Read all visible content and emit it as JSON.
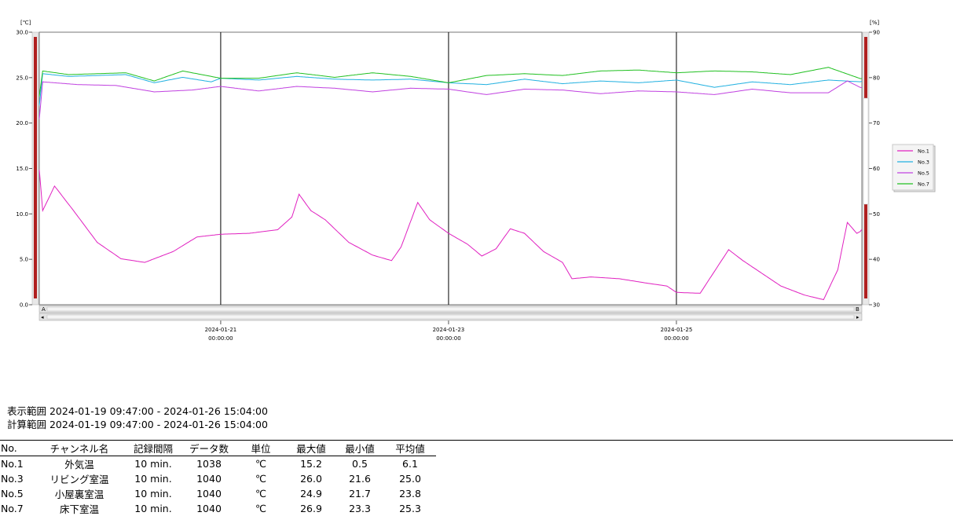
{
  "chart_data": {
    "type": "line",
    "y_left_unit": "[℃]",
    "y_right_unit": "[%]",
    "y_left_ticks": [
      "30.0",
      "25.0",
      "20.0",
      "15.0",
      "10.0",
      "5.0",
      "0.0"
    ],
    "y_right_ticks": [
      "90",
      "80",
      "70",
      "60",
      "50",
      "40",
      "30"
    ],
    "ylim_left": [
      0,
      30
    ],
    "ylim_right": [
      30,
      90
    ],
    "x_ticks": [
      {
        "date": "2024-01-21",
        "time": "00:00:00"
      },
      {
        "date": "2024-01-23",
        "time": "00:00:00"
      },
      {
        "date": "2024-01-25",
        "time": "00:00:00"
      }
    ],
    "x_range": [
      "2024-01-19 09:47:00",
      "2024-01-26 15:04:00"
    ],
    "scroll_left_label": "A",
    "scroll_right_label": "B",
    "legend": "right",
    "series": [
      {
        "name": "No.1",
        "color": "#e020c0",
        "points": [
          [
            "2024-01-19 09:47",
            15.0
          ],
          [
            "2024-01-19 10:30",
            10.5
          ],
          [
            "2024-01-19 13:00",
            13.2
          ],
          [
            "2024-01-19 17:00",
            10.5
          ],
          [
            "2024-01-19 22:00",
            7.0
          ],
          [
            "2024-01-20 03:00",
            5.2
          ],
          [
            "2024-01-20 08:00",
            4.8
          ],
          [
            "2024-01-20 14:00",
            6.0
          ],
          [
            "2024-01-20 19:00",
            7.6
          ],
          [
            "2024-01-21 00:00",
            7.9
          ],
          [
            "2024-01-21 06:00",
            8.0
          ],
          [
            "2024-01-21 12:00",
            8.4
          ],
          [
            "2024-01-21 15:00",
            9.8
          ],
          [
            "2024-01-21 16:30",
            12.3
          ],
          [
            "2024-01-21 19:00",
            10.5
          ],
          [
            "2024-01-21 22:00",
            9.5
          ],
          [
            "2024-01-22 03:00",
            7.0
          ],
          [
            "2024-01-22 08:00",
            5.6
          ],
          [
            "2024-01-22 12:00",
            5.0
          ],
          [
            "2024-01-22 14:00",
            6.5
          ],
          [
            "2024-01-22 17:30",
            11.4
          ],
          [
            "2024-01-22 20:00",
            9.5
          ],
          [
            "2024-01-23 00:00",
            8.0
          ],
          [
            "2024-01-23 04:00",
            6.8
          ],
          [
            "2024-01-23 07:00",
            5.5
          ],
          [
            "2024-01-23 10:00",
            6.3
          ],
          [
            "2024-01-23 13:00",
            8.5
          ],
          [
            "2024-01-23 16:00",
            8.0
          ],
          [
            "2024-01-23 20:00",
            6.0
          ],
          [
            "2024-01-24 00:00",
            4.8
          ],
          [
            "2024-01-24 02:00",
            3.0
          ],
          [
            "2024-01-24 06:00",
            3.2
          ],
          [
            "2024-01-24 12:00",
            3.0
          ],
          [
            "2024-01-24 18:00",
            2.5
          ],
          [
            "2024-01-24 22:00",
            2.2
          ],
          [
            "2024-01-25 00:00",
            1.5
          ],
          [
            "2024-01-25 05:00",
            1.4
          ],
          [
            "2024-01-25 08:00",
            3.8
          ],
          [
            "2024-01-25 11:00",
            6.2
          ],
          [
            "2024-01-25 14:00",
            5.0
          ],
          [
            "2024-01-25 18:00",
            3.6
          ],
          [
            "2024-01-25 22:00",
            2.2
          ],
          [
            "2024-01-26 03:00",
            1.2
          ],
          [
            "2024-01-26 07:00",
            0.7
          ],
          [
            "2024-01-26 10:00",
            4.0
          ],
          [
            "2024-01-26 12:00",
            9.2
          ],
          [
            "2024-01-26 14:00",
            8.0
          ],
          [
            "2024-01-26 15:04",
            8.3
          ]
        ]
      },
      {
        "name": "No.3",
        "color": "#20b0e0",
        "points": [
          [
            "2024-01-19 09:47",
            22.0
          ],
          [
            "2024-01-19 10:30",
            25.5
          ],
          [
            "2024-01-19 16:00",
            25.2
          ],
          [
            "2024-01-19 22:00",
            25.3
          ],
          [
            "2024-01-20 04:00",
            25.4
          ],
          [
            "2024-01-20 10:00",
            24.5
          ],
          [
            "2024-01-20 16:00",
            25.1
          ],
          [
            "2024-01-20 22:00",
            24.6
          ],
          [
            "2024-01-21 00:00",
            25.0
          ],
          [
            "2024-01-21 08:00",
            24.8
          ],
          [
            "2024-01-21 16:00",
            25.2
          ],
          [
            "2024-01-22 00:00",
            24.9
          ],
          [
            "2024-01-22 08:00",
            24.8
          ],
          [
            "2024-01-22 16:00",
            24.9
          ],
          [
            "2024-01-23 00:00",
            24.5
          ],
          [
            "2024-01-23 08:00",
            24.3
          ],
          [
            "2024-01-23 16:00",
            24.9
          ],
          [
            "2024-01-24 00:00",
            24.4
          ],
          [
            "2024-01-24 08:00",
            24.7
          ],
          [
            "2024-01-24 16:00",
            24.5
          ],
          [
            "2024-01-25 00:00",
            24.8
          ],
          [
            "2024-01-25 08:00",
            24.0
          ],
          [
            "2024-01-25 16:00",
            24.6
          ],
          [
            "2024-01-26 00:00",
            24.3
          ],
          [
            "2024-01-26 08:00",
            24.8
          ],
          [
            "2024-01-26 15:04",
            24.6
          ]
        ]
      },
      {
        "name": "No.5",
        "color": "#c040e0",
        "points": [
          [
            "2024-01-19 09:47",
            20.5
          ],
          [
            "2024-01-19 10:30",
            24.6
          ],
          [
            "2024-01-19 18:00",
            24.3
          ],
          [
            "2024-01-20 02:00",
            24.2
          ],
          [
            "2024-01-20 10:00",
            23.5
          ],
          [
            "2024-01-20 18:00",
            23.7
          ],
          [
            "2024-01-21 00:00",
            24.1
          ],
          [
            "2024-01-21 08:00",
            23.6
          ],
          [
            "2024-01-21 16:00",
            24.1
          ],
          [
            "2024-01-22 00:00",
            23.9
          ],
          [
            "2024-01-22 08:00",
            23.5
          ],
          [
            "2024-01-22 16:00",
            23.9
          ],
          [
            "2024-01-23 00:00",
            23.8
          ],
          [
            "2024-01-23 08:00",
            23.2
          ],
          [
            "2024-01-23 16:00",
            23.8
          ],
          [
            "2024-01-24 00:00",
            23.7
          ],
          [
            "2024-01-24 08:00",
            23.3
          ],
          [
            "2024-01-24 16:00",
            23.6
          ],
          [
            "2024-01-25 00:00",
            23.5
          ],
          [
            "2024-01-25 08:00",
            23.2
          ],
          [
            "2024-01-25 16:00",
            23.8
          ],
          [
            "2024-01-26 00:00",
            23.4
          ],
          [
            "2024-01-26 08:00",
            23.4
          ],
          [
            "2024-01-26 12:00",
            24.7
          ],
          [
            "2024-01-26 15:04",
            23.9
          ]
        ]
      },
      {
        "name": "No.7",
        "color": "#20c020",
        "points": [
          [
            "2024-01-19 09:47",
            23.0
          ],
          [
            "2024-01-19 10:30",
            25.8
          ],
          [
            "2024-01-19 16:00",
            25.4
          ],
          [
            "2024-01-19 22:00",
            25.5
          ],
          [
            "2024-01-20 04:00",
            25.6
          ],
          [
            "2024-01-20 10:00",
            24.7
          ],
          [
            "2024-01-20 16:00",
            25.8
          ],
          [
            "2024-01-20 22:00",
            25.2
          ],
          [
            "2024-01-21 00:00",
            25.0
          ],
          [
            "2024-01-21 08:00",
            25.0
          ],
          [
            "2024-01-21 16:00",
            25.6
          ],
          [
            "2024-01-22 00:00",
            25.1
          ],
          [
            "2024-01-22 08:00",
            25.6
          ],
          [
            "2024-01-22 16:00",
            25.2
          ],
          [
            "2024-01-23 00:00",
            24.5
          ],
          [
            "2024-01-23 08:00",
            25.3
          ],
          [
            "2024-01-23 16:00",
            25.5
          ],
          [
            "2024-01-24 00:00",
            25.3
          ],
          [
            "2024-01-24 08:00",
            25.8
          ],
          [
            "2024-01-24 16:00",
            25.9
          ],
          [
            "2024-01-25 00:00",
            25.6
          ],
          [
            "2024-01-25 08:00",
            25.8
          ],
          [
            "2024-01-25 16:00",
            25.7
          ],
          [
            "2024-01-26 00:00",
            25.4
          ],
          [
            "2024-01-26 08:00",
            26.2
          ],
          [
            "2024-01-26 15:04",
            24.9
          ]
        ]
      }
    ]
  },
  "display_range": "表示範囲 2024-01-19 09:47:00 - 2024-01-26 15:04:00",
  "calc_range": "計算範囲 2024-01-19 09:47:00 - 2024-01-26 15:04:00",
  "table": {
    "headers": [
      "No.",
      "チャンネル名",
      "記録間隔",
      "データ数",
      "単位",
      "最大値",
      "最小値",
      "平均値"
    ],
    "rows": [
      [
        "No.1",
        "外気温",
        "10 min.",
        "1038",
        "℃",
        "15.2",
        "0.5",
        "6.1"
      ],
      [
        "No.3",
        "リビング室温",
        "10 min.",
        "1040",
        "℃",
        "26.0",
        "21.6",
        "25.0"
      ],
      [
        "No.5",
        "小屋裏室温",
        "10 min.",
        "1040",
        "℃",
        "24.9",
        "21.7",
        "23.8"
      ],
      [
        "No.7",
        "床下室温",
        "10 min.",
        "1040",
        "℃",
        "26.9",
        "23.3",
        "25.3"
      ]
    ]
  }
}
